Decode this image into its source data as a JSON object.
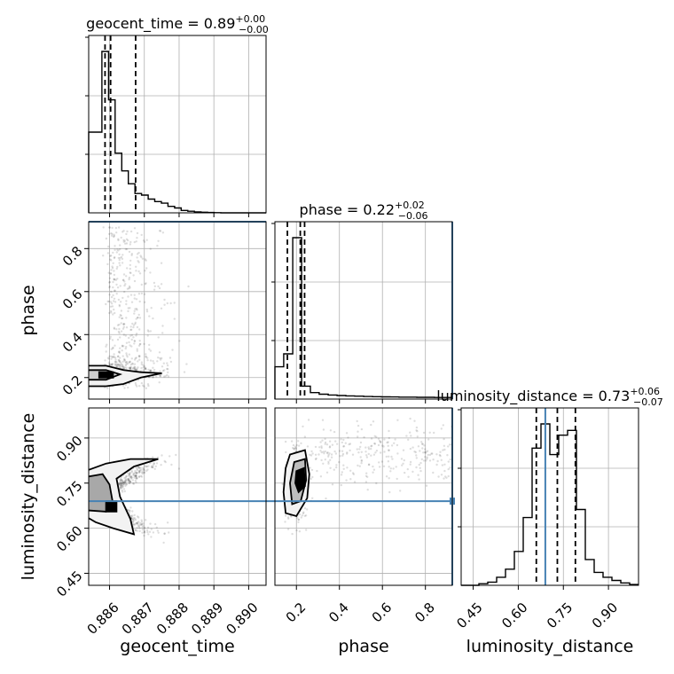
{
  "chart_data": {
    "type": "scatter",
    "subtype": "corner plot",
    "parameters": [
      "geocent_time",
      "phase",
      "luminosity_distance"
    ],
    "axis_labels": {
      "geocent_time": "geocent_time",
      "phase": "phase",
      "luminosity_distance": "luminosity_distance"
    },
    "ranges": {
      "geocent_time": [
        0.8854,
        0.8905
      ],
      "phase": [
        0.1,
        0.925
      ],
      "luminosity_distance": [
        0.41,
        1.0
      ]
    },
    "ticks": {
      "geocent_time": {
        "values": [
          0.886,
          0.887,
          0.888,
          0.889,
          0.89
        ],
        "labels": [
          "0.886",
          "0.887",
          "0.888",
          "0.889",
          "0.890"
        ]
      },
      "phase": {
        "values": [
          0.2,
          0.4,
          0.6,
          0.8
        ],
        "labels": [
          "0.2",
          "0.4",
          "0.6",
          "0.8"
        ]
      },
      "luminosity_distance": {
        "values": [
          0.45,
          0.6,
          0.75,
          0.9
        ],
        "labels": [
          "0.45",
          "0.60",
          "0.75",
          "0.90"
        ]
      }
    },
    "titles": [
      {
        "param": "geocent_time",
        "label": "geocent_time = 0.89",
        "sup": "+0.00",
        "sub": "−0.00"
      },
      {
        "param": "phase",
        "label": "phase = 0.22",
        "sup": "+0.02",
        "sub": "−0.06"
      },
      {
        "param": "luminosity_distance",
        "label": "luminosity_distance = 0.73",
        "sup": "+0.06",
        "sub": "−0.07"
      }
    ],
    "truths": {
      "geocent_time": null,
      "phase": 0.925,
      "luminosity_distance": 0.69
    },
    "quantiles": {
      "geocent_time": [
        0.88587,
        0.88603,
        0.88675
      ],
      "phase": [
        0.158,
        0.218,
        0.238
      ],
      "luminosity_distance": [
        0.66,
        0.73,
        0.79
      ]
    },
    "histograms": {
      "geocent_time": {
        "edges": [
          0.8854,
          0.88578,
          0.88597,
          0.88616,
          0.88635,
          0.88654,
          0.88673,
          0.88692,
          0.88711,
          0.8873,
          0.88749,
          0.88768,
          0.88787,
          0.88806,
          0.88825,
          0.88844,
          0.88863,
          0.88882,
          0.88901,
          0.8892,
          0.8905
        ],
        "counts": [
          0.5,
          1.0,
          0.7,
          0.37,
          0.26,
          0.18,
          0.12,
          0.11,
          0.085,
          0.07,
          0.06,
          0.04,
          0.03,
          0.015,
          0.01,
          0.006,
          0.004,
          0.002,
          0.001,
          0.0
        ]
      },
      "phase": {
        "edges": [
          0.1,
          0.141,
          0.183,
          0.224,
          0.265,
          0.306,
          0.348,
          0.389,
          0.43,
          0.471,
          0.513,
          0.554,
          0.595,
          0.636,
          0.677,
          0.719,
          0.76,
          0.801,
          0.842,
          0.884,
          0.925
        ],
        "counts": [
          0.2,
          0.28,
          1.0,
          0.08,
          0.04,
          0.03,
          0.025,
          0.022,
          0.02,
          0.018,
          0.016,
          0.015,
          0.014,
          0.013,
          0.012,
          0.012,
          0.011,
          0.011,
          0.01,
          0.01
        ]
      },
      "luminosity_distance": {
        "edges": [
          0.41,
          0.4395,
          0.469,
          0.4985,
          0.528,
          0.5575,
          0.587,
          0.6165,
          0.646,
          0.6755,
          0.705,
          0.7345,
          0.764,
          0.7935,
          0.823,
          0.8525,
          0.882,
          0.9115,
          0.941,
          0.9705,
          1.0
        ],
        "counts": [
          0.0,
          0.0,
          0.01,
          0.02,
          0.05,
          0.1,
          0.21,
          0.42,
          0.85,
          1.0,
          0.81,
          0.93,
          0.96,
          0.47,
          0.16,
          0.08,
          0.05,
          0.03,
          0.015,
          0.005
        ]
      }
    },
    "contour_levels": [
      0.5,
      1.0,
      1.5,
      2.0
    ],
    "grid": true
  }
}
